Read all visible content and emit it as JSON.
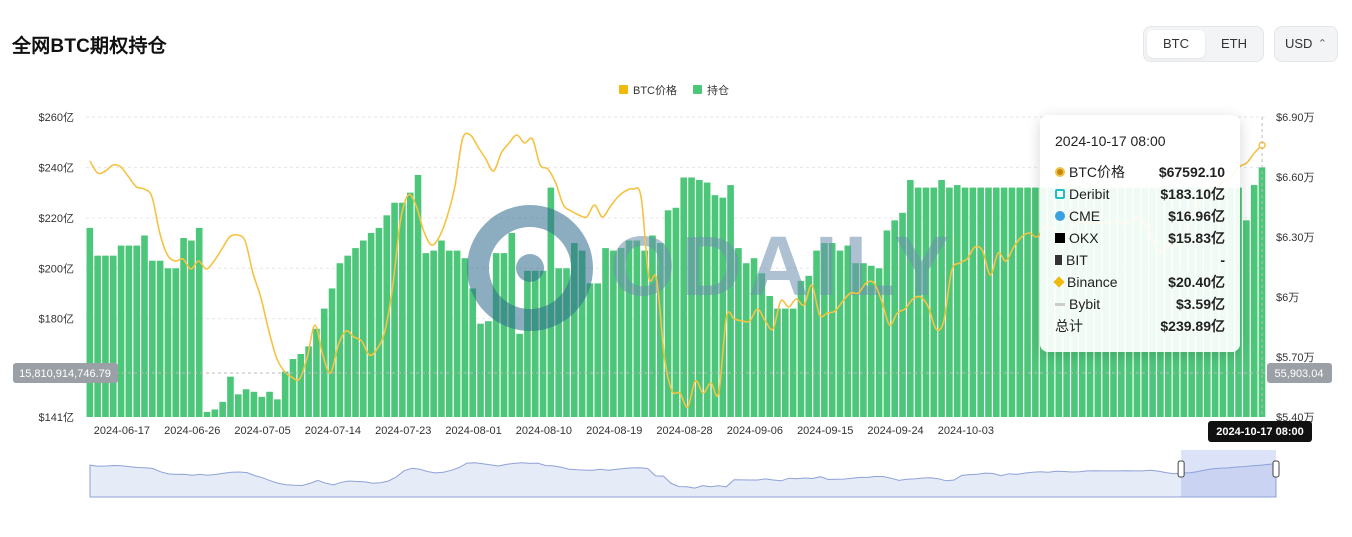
{
  "title": "全网BTC期权持仓",
  "tabs": [
    {
      "label": "BTC",
      "active": true
    },
    {
      "label": "ETH",
      "active": false
    }
  ],
  "currency": "USD",
  "colors": {
    "price": "#f0b90b",
    "oi": "#4cc77a",
    "price_line": "#f5c242",
    "navigator": "#e6ebf8"
  },
  "chart_data": {
    "type": "bar",
    "x_tick_labels": [
      "2024-06-17",
      "2024-06-26",
      "2024-07-05",
      "2024-07-14",
      "2024-07-23",
      "2024-08-01",
      "2024-08-10",
      "2024-08-19",
      "2024-08-28",
      "2024-09-06",
      "2024-09-15",
      "2024-09-24",
      "2024-10-03",
      "2024-10-17 08:00"
    ],
    "y_left_ticks": [
      "$141亿",
      "$180亿",
      "$200亿",
      "$220亿",
      "$240亿",
      "$260亿"
    ],
    "y_right_ticks": [
      "$5.40万",
      "$5.70万",
      "$6万",
      "$6.30万",
      "$6.60万",
      "$6.90万"
    ],
    "ylim_left": [
      141,
      260
    ],
    "ylim_right": [
      54000,
      69000
    ],
    "crosshair_left_label": "15,810,914,746.79",
    "crosshair_right_label": "55,903.04",
    "legend": [
      "BTC价格",
      "持仓"
    ],
    "series": [
      {
        "name": "持仓",
        "type": "bar",
        "values": [
          216,
          205,
          205,
          205,
          209,
          209,
          209,
          213,
          203,
          203,
          200,
          200,
          212,
          211,
          216,
          143,
          144,
          147,
          157,
          150,
          152,
          151,
          149,
          151,
          148,
          159,
          164,
          166,
          169,
          176,
          184,
          192,
          202,
          205,
          208,
          211,
          214,
          216,
          221,
          226,
          226,
          230,
          237,
          206,
          207,
          211,
          207,
          207,
          204,
          192,
          178,
          179,
          206,
          206,
          214,
          174,
          199,
          199,
          199,
          232,
          200,
          200,
          210,
          207,
          194,
          194,
          208,
          207,
          208,
          211,
          211,
          207,
          213,
          210,
          223,
          224,
          236,
          236,
          235,
          234,
          229,
          228,
          233,
          208,
          202,
          204,
          198,
          189,
          184,
          184,
          184,
          195,
          197,
          207,
          210,
          210,
          207,
          209,
          202,
          202,
          201,
          200,
          215,
          219,
          222,
          235,
          232,
          232,
          232,
          235,
          232,
          233,
          232,
          232,
          232,
          232,
          232,
          232,
          232,
          232,
          232,
          232,
          232,
          232,
          232,
          232,
          232,
          232,
          232,
          232,
          232,
          232,
          232,
          232,
          232,
          232,
          232,
          232,
          232,
          232,
          232,
          232,
          232,
          232,
          232,
          232,
          232,
          232,
          219,
          233,
          240
        ]
      },
      {
        "name": "BTC价格",
        "type": "line",
        "values": [
          66800,
          66200,
          66300,
          66600,
          66500,
          66000,
          65500,
          65400,
          65000,
          63200,
          62100,
          61800,
          61900,
          61400,
          61800,
          61400,
          61800,
          62400,
          63000,
          63100,
          62800,
          61200,
          60000,
          58400,
          57000,
          56300,
          56000,
          55900,
          57000,
          58600,
          57100,
          56200,
          57600,
          58300,
          58000,
          57800,
          57100,
          57400,
          58300,
          60500,
          63800,
          65100,
          64600,
          63300,
          62600,
          63000,
          64000,
          65500,
          67900,
          68100,
          67500,
          66900,
          66300,
          67200,
          67700,
          68100,
          67700,
          67900,
          66600,
          66400,
          65700,
          64600,
          64300,
          64100,
          64000,
          64600,
          64000,
          64500,
          65000,
          65300,
          65400,
          65000,
          61000,
          60900,
          57000,
          55300,
          55200,
          54500,
          55800,
          55200,
          55700,
          55200,
          59000,
          58900,
          58800,
          58800,
          59400,
          58800,
          58400,
          59800,
          59500,
          59900,
          59600,
          60600,
          59100,
          59200,
          59300,
          59800,
          60200,
          60200,
          60700,
          60700,
          59800,
          58600,
          59200,
          59400,
          59900,
          60000,
          59500,
          58400,
          58800,
          61300,
          61700,
          61900,
          62500,
          62300,
          61100,
          62200,
          61800,
          62500,
          63000,
          63200,
          63000,
          63500,
          63400,
          63100,
          63200,
          63700,
          63800,
          63700,
          63700,
          63700,
          63800,
          63700,
          63700,
          64000,
          63600,
          62800,
          62200,
          62600,
          62600,
          63300,
          64200,
          64800,
          65200,
          65300,
          65800,
          66000,
          66500,
          66700,
          67200,
          67592
        ]
      }
    ]
  },
  "tooltip": {
    "time": "2024-10-17 08:00",
    "rows": [
      {
        "name": "BTC价格",
        "value": "$67592.10",
        "icon": "btc-price-dot-icon"
      },
      {
        "name": "Deribit",
        "value": "$183.10亿",
        "icon": "deribit-icon"
      },
      {
        "name": "CME",
        "value": "$16.96亿",
        "icon": "cme-icon"
      },
      {
        "name": "OKX",
        "value": "$15.83亿",
        "icon": "okx-icon"
      },
      {
        "name": "BIT",
        "value": "-",
        "icon": "bit-icon"
      },
      {
        "name": "Binance",
        "value": "$20.40亿",
        "icon": "binance-icon"
      },
      {
        "name": "Bybit",
        "value": "$3.59亿",
        "icon": "bybit-icon"
      },
      {
        "name": "总计",
        "value": "$239.89亿",
        "icon": ""
      }
    ]
  },
  "watermark": "ODAILY",
  "navigator_selection": [
    0.92,
    1.0
  ]
}
